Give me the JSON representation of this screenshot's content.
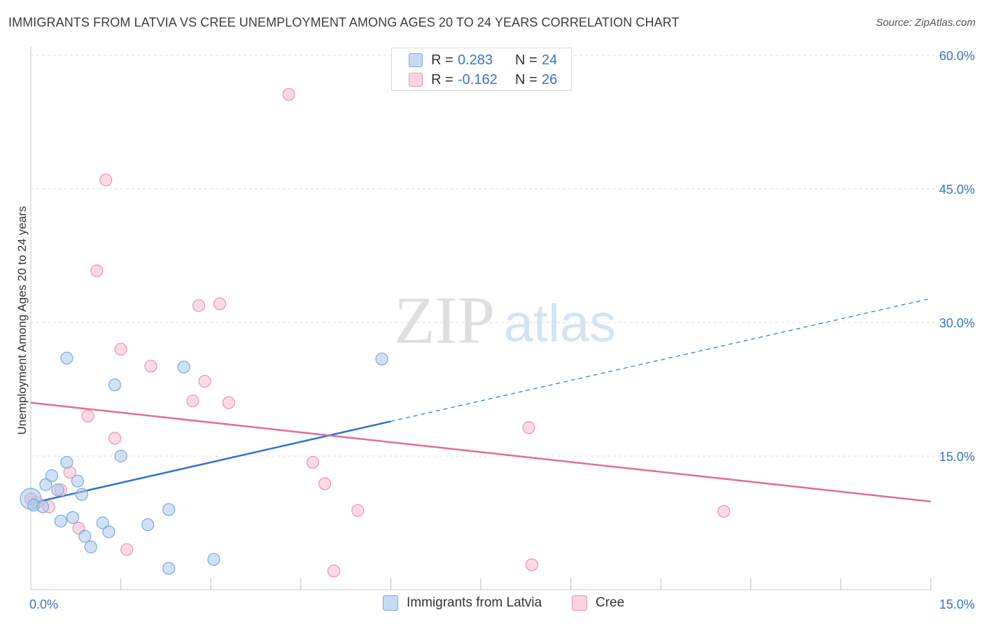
{
  "title": "IMMIGRANTS FROM LATVIA VS CREE UNEMPLOYMENT AMONG AGES 20 TO 24 YEARS CORRELATION CHART",
  "source": "Source: ZipAtlas.com",
  "watermark": {
    "zip": "ZIP",
    "atlas": "atlas"
  },
  "legend": {
    "r_label": "R =",
    "n_label": "N =",
    "series": [
      {
        "name": "Immigrants from Latvia",
        "r": "0.283",
        "n": "24",
        "color": "#a9c9ef",
        "stroke": "#7aa9e0"
      },
      {
        "name": "Cree",
        "r": "-0.162",
        "n": "26",
        "color": "#f7bccd",
        "stroke": "#ee93ae"
      }
    ]
  },
  "chart_data": {
    "type": "scatter",
    "title": "IMMIGRANTS FROM LATVIA VS CREE UNEMPLOYMENT AMONG AGES 20 TO 24 YEARS CORRELATION CHART",
    "xlabel": "",
    "ylabel": "Unemployment Among Ages 20 to 24 years",
    "xlim": [
      0,
      15
    ],
    "ylim": [
      0,
      60
    ],
    "x_ticks": [
      {
        "value": 0,
        "label": "0.0%"
      },
      {
        "value": 15,
        "label": "15.0%"
      }
    ],
    "y_ticks": [
      {
        "value": 15,
        "label": "15.0%"
      },
      {
        "value": 30,
        "label": "30.0%"
      },
      {
        "value": 45,
        "label": "45.0%"
      },
      {
        "value": 60,
        "label": "60.0%"
      }
    ],
    "grid": true,
    "series": [
      {
        "name": "Immigrants from Latvia",
        "color": "#a9c9ef",
        "stroke": "#7aa9e0",
        "line_color": "#2f72d0",
        "trend": {
          "x0": 0,
          "y0": 9.7,
          "x1": 6.0,
          "y1": 18.9,
          "dash_x1": 15.0,
          "dash_y1": 32.7
        },
        "points": [
          {
            "x": 0.0,
            "y": 10.2,
            "big": true
          },
          {
            "x": 0.05,
            "y": 9.5
          },
          {
            "x": 0.2,
            "y": 9.3
          },
          {
            "x": 0.25,
            "y": 11.8
          },
          {
            "x": 0.35,
            "y": 12.8
          },
          {
            "x": 0.45,
            "y": 11.2
          },
          {
            "x": 0.5,
            "y": 7.7
          },
          {
            "x": 0.6,
            "y": 26.0
          },
          {
            "x": 0.6,
            "y": 14.3
          },
          {
            "x": 0.7,
            "y": 8.1
          },
          {
            "x": 0.78,
            "y": 12.2
          },
          {
            "x": 0.85,
            "y": 10.7
          },
          {
            "x": 0.9,
            "y": 6.0
          },
          {
            "x": 1.0,
            "y": 4.8
          },
          {
            "x": 1.2,
            "y": 7.5
          },
          {
            "x": 1.3,
            "y": 6.5
          },
          {
            "x": 1.4,
            "y": 23.0
          },
          {
            "x": 1.5,
            "y": 15.0
          },
          {
            "x": 1.95,
            "y": 7.3
          },
          {
            "x": 2.3,
            "y": 2.4
          },
          {
            "x": 2.3,
            "y": 9.0
          },
          {
            "x": 2.55,
            "y": 25.0
          },
          {
            "x": 3.05,
            "y": 3.4
          },
          {
            "x": 5.85,
            "y": 25.9
          }
        ]
      },
      {
        "name": "Cree",
        "color": "#f7bccd",
        "stroke": "#ee93ae",
        "line_color": "#e66a96",
        "trend": {
          "x0": 0,
          "y0": 21.0,
          "x1": 15.0,
          "y1": 9.9
        },
        "points": [
          {
            "x": 0.0,
            "y": 10.2
          },
          {
            "x": 0.1,
            "y": 9.8
          },
          {
            "x": 0.3,
            "y": 9.3
          },
          {
            "x": 0.5,
            "y": 11.2
          },
          {
            "x": 0.65,
            "y": 13.2
          },
          {
            "x": 0.8,
            "y": 6.9
          },
          {
            "x": 0.95,
            "y": 19.5
          },
          {
            "x": 1.1,
            "y": 35.8
          },
          {
            "x": 1.25,
            "y": 46.0
          },
          {
            "x": 1.4,
            "y": 17.0
          },
          {
            "x": 1.5,
            "y": 27.0
          },
          {
            "x": 1.6,
            "y": 4.5
          },
          {
            "x": 2.0,
            "y": 25.1
          },
          {
            "x": 2.7,
            "y": 21.2
          },
          {
            "x": 2.8,
            "y": 31.9
          },
          {
            "x": 2.9,
            "y": 23.4
          },
          {
            "x": 3.15,
            "y": 32.1
          },
          {
            "x": 3.3,
            "y": 21.0
          },
          {
            "x": 4.3,
            "y": 55.6
          },
          {
            "x": 4.7,
            "y": 14.3
          },
          {
            "x": 4.9,
            "y": 11.9
          },
          {
            "x": 5.05,
            "y": 2.1
          },
          {
            "x": 5.45,
            "y": 8.9
          },
          {
            "x": 8.3,
            "y": 18.2
          },
          {
            "x": 8.35,
            "y": 2.8
          },
          {
            "x": 11.55,
            "y": 8.8
          }
        ]
      }
    ]
  }
}
